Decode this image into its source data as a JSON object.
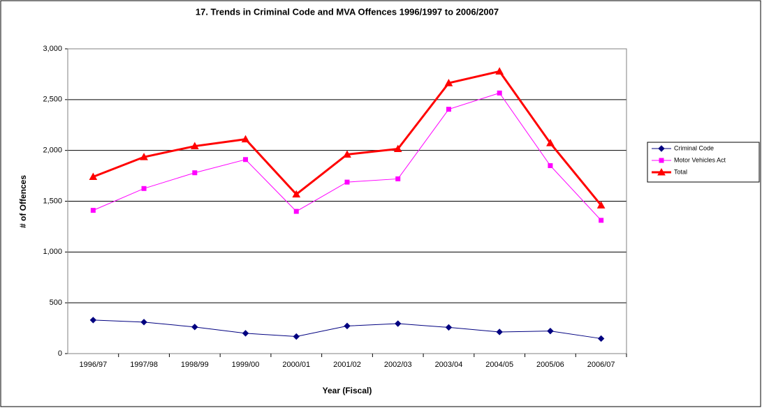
{
  "chart_data": {
    "type": "line",
    "title": "17. Trends in Criminal Code and MVA Offences 1996/1997 to 2006/2007",
    "x_label": "Year (Fiscal)",
    "y_label": "# of Offences",
    "categories": [
      "1996/97",
      "1997/98",
      "1998/99",
      "1999/00",
      "2000/01",
      "2001/02",
      "2002/03",
      "2003/04",
      "2004/05",
      "2005/06",
      "2006/07"
    ],
    "series": [
      {
        "name": "Criminal Code",
        "color": "#000080",
        "marker": "diamond",
        "line_width": 1,
        "values": [
          330,
          310,
          262,
          200,
          168,
          272,
          295,
          258,
          213,
          222,
          148
        ]
      },
      {
        "name": "Motor Vehicles Act",
        "color": "#ff00ff",
        "marker": "square",
        "line_width": 1,
        "values": [
          1410,
          1625,
          1780,
          1910,
          1400,
          1688,
          1720,
          2405,
          2565,
          1850,
          1312
        ]
      },
      {
        "name": "Total",
        "color": "#ff0000",
        "marker": "triangle",
        "line_width": 3,
        "values": [
          1740,
          1935,
          2042,
          2110,
          1568,
          1960,
          2015,
          2663,
          2778,
          2072,
          1460
        ]
      }
    ],
    "ylim": [
      0,
      3000
    ],
    "yticks": [
      0,
      500,
      {
        "value": 1000,
        "label": "1,000"
      },
      {
        "value": 1500,
        "label": "1,500"
      },
      {
        "value": 2000,
        "label": "2,000"
      },
      {
        "value": 2500,
        "label": "2,500"
      },
      {
        "value": 3000,
        "label": "3,000"
      }
    ],
    "grid": true,
    "legend": "right"
  }
}
